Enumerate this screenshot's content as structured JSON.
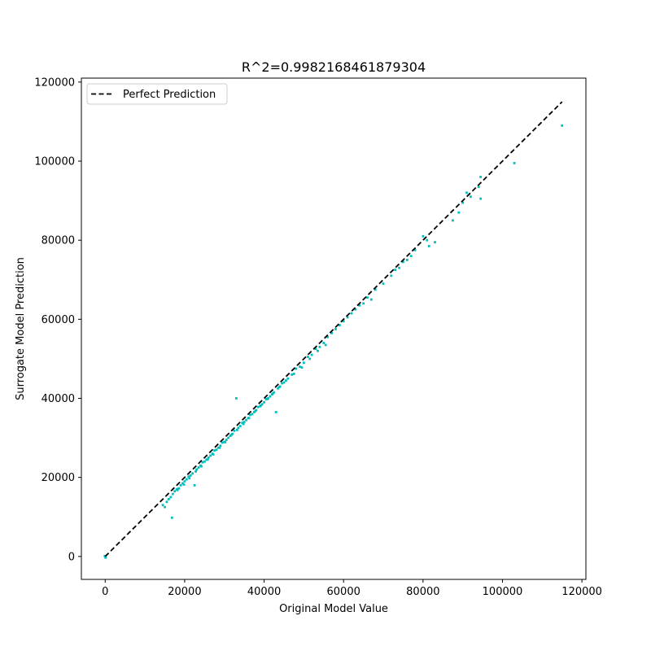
{
  "chart_data": {
    "type": "scatter",
    "title": "R^2=0.9982168461879304",
    "xlabel": "Original Model Value",
    "ylabel": "Surrogate Model Prediction",
    "xlim": [
      -6000,
      121000
    ],
    "ylim": [
      -5800,
      121000
    ],
    "x_ticks": [
      0,
      20000,
      40000,
      60000,
      80000,
      100000,
      120000
    ],
    "y_ticks": [
      0,
      20000,
      40000,
      60000,
      80000,
      100000,
      120000
    ],
    "x_tick_labels": [
      "0",
      "20000",
      "40000",
      "60000",
      "80000",
      "100000",
      "120000"
    ],
    "y_tick_labels": [
      "0",
      "20000",
      "40000",
      "60000",
      "80000",
      "100000",
      "120000"
    ],
    "grid": false,
    "legend": {
      "placement": "top-left",
      "entries": [
        "Perfect Prediction"
      ]
    },
    "colors": {
      "points": "#00bfbf",
      "reference_line": "#000000"
    },
    "reference_line": {
      "name": "Perfect Prediction",
      "x": [
        0,
        115000
      ],
      "y": [
        0,
        115000
      ],
      "style": "dashed"
    },
    "series": [
      {
        "points": [
          [
            0,
            0
          ],
          [
            100,
            -300
          ],
          [
            -100,
            100
          ],
          [
            14500,
            13000
          ],
          [
            15000,
            12500
          ],
          [
            15500,
            13800
          ],
          [
            16000,
            14500
          ],
          [
            16500,
            15000
          ],
          [
            16800,
            9800
          ],
          [
            17000,
            15800
          ],
          [
            17500,
            16500
          ],
          [
            18000,
            17000
          ],
          [
            18500,
            17200
          ],
          [
            19000,
            18000
          ],
          [
            19500,
            18500
          ],
          [
            20000,
            19000
          ],
          [
            20500,
            19500
          ],
          [
            21000,
            20200
          ],
          [
            21500,
            20500
          ],
          [
            22000,
            21000
          ],
          [
            22500,
            18000
          ],
          [
            23000,
            22000
          ],
          [
            23500,
            22500
          ],
          [
            24000,
            23000
          ],
          [
            24500,
            23800
          ],
          [
            25000,
            24000
          ],
          [
            25500,
            24500
          ],
          [
            26000,
            25000
          ],
          [
            26500,
            25500
          ],
          [
            27000,
            26000
          ],
          [
            27500,
            26800
          ],
          [
            28000,
            27000
          ],
          [
            28500,
            27500
          ],
          [
            29000,
            28000
          ],
          [
            29500,
            28800
          ],
          [
            30000,
            29000
          ],
          [
            30500,
            29500
          ],
          [
            31000,
            30000
          ],
          [
            31500,
            30500
          ],
          [
            32000,
            31000
          ],
          [
            32500,
            31800
          ],
          [
            33000,
            40000
          ],
          [
            33500,
            32500
          ],
          [
            34000,
            33000
          ],
          [
            34500,
            33800
          ],
          [
            35000,
            34000
          ],
          [
            35500,
            34500
          ],
          [
            36000,
            35000
          ],
          [
            36500,
            35800
          ],
          [
            37000,
            36000
          ],
          [
            37500,
            36500
          ],
          [
            38000,
            37000
          ],
          [
            38500,
            37800
          ],
          [
            39000,
            38000
          ],
          [
            39500,
            38500
          ],
          [
            40000,
            39000
          ],
          [
            40500,
            39800
          ],
          [
            41000,
            40000
          ],
          [
            41500,
            40500
          ],
          [
            42000,
            41000
          ],
          [
            42500,
            41500
          ],
          [
            43000,
            36500
          ],
          [
            43500,
            42500
          ],
          [
            44000,
            43000
          ],
          [
            44500,
            43800
          ],
          [
            45000,
            44000
          ],
          [
            46000,
            45000
          ],
          [
            47000,
            46000
          ],
          [
            48000,
            47500
          ],
          [
            49000,
            48000
          ],
          [
            50000,
            49000
          ],
          [
            51000,
            50500
          ],
          [
            52000,
            51000
          ],
          [
            53000,
            52500
          ],
          [
            54000,
            53000
          ],
          [
            55000,
            54000
          ],
          [
            56000,
            55500
          ],
          [
            57000,
            56500
          ],
          [
            58000,
            57500
          ],
          [
            59000,
            58500
          ],
          [
            60000,
            59500
          ],
          [
            61000,
            60500
          ],
          [
            62000,
            61500
          ],
          [
            63000,
            62500
          ],
          [
            64000,
            63500
          ],
          [
            65000,
            64000
          ],
          [
            66000,
            65500
          ],
          [
            67000,
            65000
          ],
          [
            68000,
            67500
          ],
          [
            70000,
            69000
          ],
          [
            72000,
            71000
          ],
          [
            73000,
            72500
          ],
          [
            74000,
            73000
          ],
          [
            75000,
            74500
          ],
          [
            76000,
            75000
          ],
          [
            77000,
            76000
          ],
          [
            78000,
            77500
          ],
          [
            80000,
            81000
          ],
          [
            81000,
            80000
          ],
          [
            81500,
            78500
          ],
          [
            83000,
            79500
          ],
          [
            87500,
            85000
          ],
          [
            89000,
            87000
          ],
          [
            90000,
            89500
          ],
          [
            91000,
            92000
          ],
          [
            92000,
            91000
          ],
          [
            94000,
            93500
          ],
          [
            94500,
            96000
          ],
          [
            94500,
            90500
          ],
          [
            103000,
            99500
          ],
          [
            115000,
            109000
          ],
          [
            18200,
            16800
          ],
          [
            19800,
            18200
          ],
          [
            21200,
            19800
          ],
          [
            22800,
            21500
          ],
          [
            24200,
            22800
          ],
          [
            25800,
            24500
          ],
          [
            27200,
            25800
          ],
          [
            28800,
            27500
          ],
          [
            30200,
            28900
          ],
          [
            31800,
            30800
          ],
          [
            33200,
            32000
          ],
          [
            34800,
            33500
          ],
          [
            36200,
            35000
          ],
          [
            37800,
            36800
          ],
          [
            39200,
            38200
          ],
          [
            40800,
            39800
          ],
          [
            42200,
            41200
          ],
          [
            43800,
            42800
          ],
          [
            45500,
            44500
          ],
          [
            47500,
            46200
          ],
          [
            49500,
            47800
          ],
          [
            51500,
            50000
          ],
          [
            53500,
            52000
          ],
          [
            55500,
            53500
          ]
        ]
      }
    ]
  }
}
